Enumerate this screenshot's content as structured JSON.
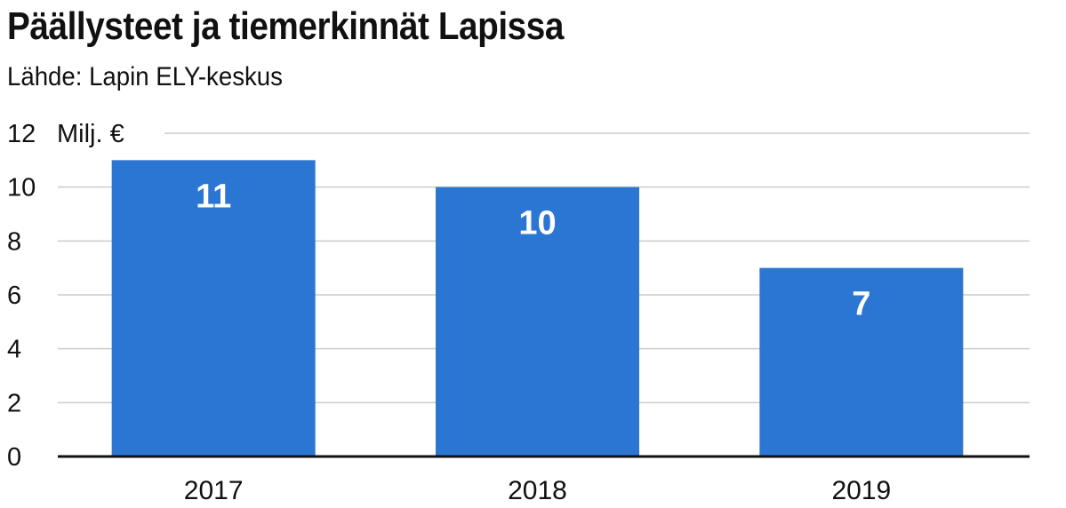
{
  "title": "Päällysteet ja tiemerkinnät Lapissa",
  "subtitle": "Lähde: Lapin ELY-keskus",
  "colors": {
    "bar": "#2b76d2",
    "grid": "#cccccc",
    "axis": "#111111",
    "data_label": "#ffffff"
  },
  "chart_data": {
    "type": "bar",
    "title": "Päällysteet ja tiemerkinnät Lapissa",
    "subtitle": "Lähde: Lapin ELY-keskus",
    "categories": [
      "2017",
      "2018",
      "2019"
    ],
    "values": [
      11,
      10,
      7
    ],
    "data_labels": [
      "11",
      "10",
      "7"
    ],
    "y_unit": "Milj. €",
    "xlabel": "",
    "ylabel": "",
    "ylim": [
      0,
      12
    ],
    "y_ticks": [
      0,
      2,
      4,
      6,
      8,
      10,
      12
    ],
    "grid": true,
    "legend": "none"
  }
}
